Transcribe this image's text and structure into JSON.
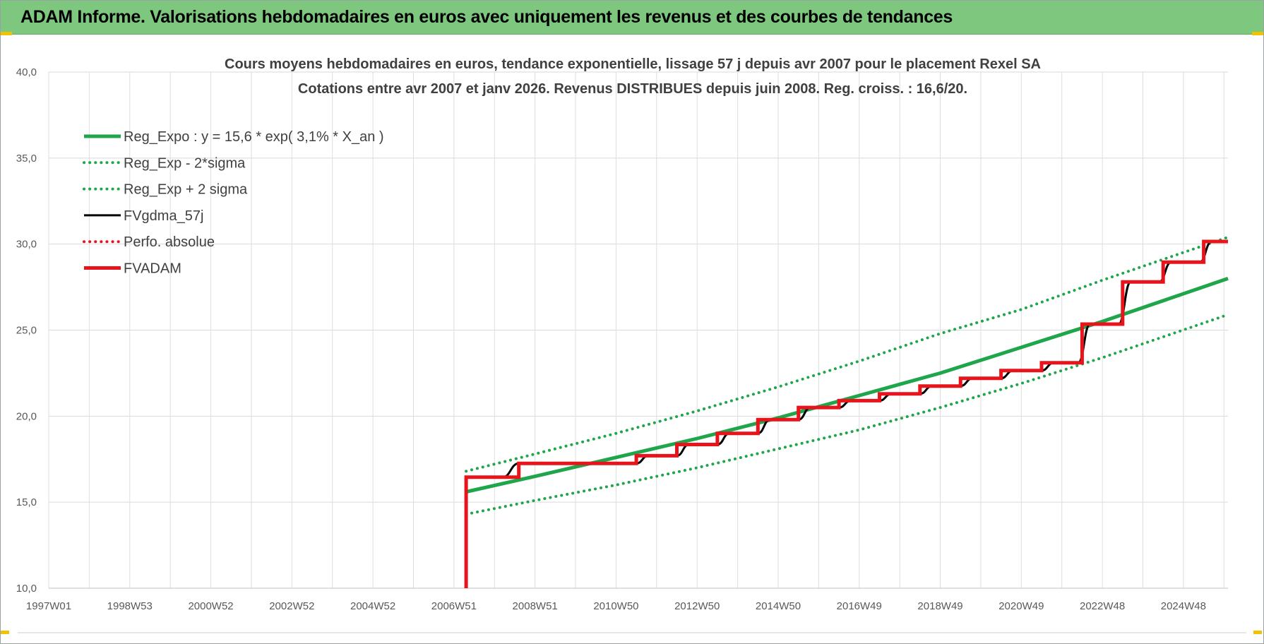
{
  "banner": {
    "title": "ADAM Informe. Valorisations hebdomadaires en euros avec uniquement les revenus et des courbes de tendances",
    "background_color": "#7dc87e"
  },
  "chart_data": {
    "type": "line",
    "title": "Cours moyens hebdomadaires en euros, tendance exponentielle, lissage 57 j depuis avr 2007 pour le placement Rexel SA",
    "subtitle": "Cotations entre avr 2007 et janv 2026. Revenus DISTRIBUES depuis juin 2008. Reg. croiss. : 16,6/20.",
    "xlabel": "",
    "ylabel": "",
    "x_ticks": [
      "1997W01",
      "1998W53",
      "2000W52",
      "2002W52",
      "2004W52",
      "2006W51",
      "2008W51",
      "2010W50",
      "2012W50",
      "2014W50",
      "2016W49",
      "2018W49",
      "2020W49",
      "2022W48",
      "2024W48"
    ],
    "x_range": [
      1997.0,
      2026.1
    ],
    "ylim": [
      10,
      40
    ],
    "y_ticks": [
      "10,0",
      "15,0",
      "20,0",
      "25,0",
      "30,0",
      "35,0",
      "40,0"
    ],
    "grid": true,
    "legend_position": "top-left",
    "colors": {
      "green": "#1fa54a",
      "black": "#000000",
      "red": "#e8141c"
    },
    "series": [
      {
        "name": "Reg_Expo : y = 15,6 * exp( 3,1% *  X_an )",
        "style": "solid",
        "color": "#1fa54a",
        "x": [
          2007.3,
          2009,
          2011,
          2013,
          2015,
          2017,
          2019,
          2021,
          2023,
          2026.1
        ],
        "values": [
          15.6,
          16.5,
          17.6,
          18.7,
          19.9,
          21.2,
          22.5,
          24.0,
          25.5,
          28.0
        ]
      },
      {
        "name": "Reg_Exp - 2*sigma",
        "style": "dotted",
        "color": "#1fa54a",
        "x": [
          2007.3,
          2009,
          2011,
          2013,
          2015,
          2017,
          2019,
          2021,
          2023,
          2026.1
        ],
        "values": [
          14.3,
          15.1,
          16.0,
          17.0,
          18.1,
          19.2,
          20.5,
          21.9,
          23.4,
          25.9
        ]
      },
      {
        "name": "Reg_Exp + 2 sigma",
        "style": "dotted",
        "color": "#1fa54a",
        "x": [
          2007.3,
          2009,
          2011,
          2013,
          2015,
          2017,
          2019,
          2021,
          2023,
          2026.1
        ],
        "values": [
          16.8,
          17.8,
          19.0,
          20.3,
          21.7,
          23.2,
          24.8,
          26.2,
          27.9,
          30.4
        ]
      },
      {
        "name": "FVgdma_57j",
        "style": "solid",
        "color": "#000000",
        "x": [
          2007.3,
          2008.2,
          2008.6,
          2011.5,
          2011.8,
          2012.5,
          2012.8,
          2013.5,
          2013.8,
          2014.5,
          2014.8,
          2015.5,
          2015.8,
          2016.5,
          2016.8,
          2017.5,
          2017.8,
          2018.5,
          2018.8,
          2019.5,
          2019.8,
          2020.5,
          2020.8,
          2021.5,
          2021.8,
          2022.4,
          2022.7,
          2023.4,
          2023.7,
          2024.4,
          2024.7,
          2025.4,
          2025.7,
          2026.1
        ],
        "values": [
          16.45,
          16.45,
          17.25,
          17.25,
          17.7,
          17.7,
          18.35,
          18.35,
          19.0,
          19.0,
          19.8,
          19.8,
          20.5,
          20.5,
          20.9,
          20.9,
          21.3,
          21.3,
          21.75,
          21.75,
          22.2,
          22.2,
          22.65,
          22.65,
          23.1,
          23.1,
          25.35,
          25.35,
          27.8,
          27.8,
          28.95,
          28.95,
          30.15,
          30.15
        ]
      },
      {
        "name": "Perfo. absolue",
        "style": "dotted",
        "color": "#e8141c",
        "x": [],
        "values": []
      },
      {
        "name": "FVADAM",
        "style": "solid",
        "color": "#e8141c",
        "x": [
          2007.3,
          2007.3,
          2008.6,
          2008.6,
          2011.5,
          2011.5,
          2012.5,
          2012.5,
          2013.5,
          2013.5,
          2014.5,
          2014.5,
          2015.5,
          2015.5,
          2016.5,
          2016.5,
          2017.5,
          2017.5,
          2018.5,
          2018.5,
          2019.5,
          2019.5,
          2020.5,
          2020.5,
          2021.5,
          2021.5,
          2022.5,
          2022.5,
          2023.5,
          2023.5,
          2024.5,
          2024.5,
          2025.5,
          2025.5,
          2026.1
        ],
        "values": [
          10.0,
          16.45,
          16.45,
          17.25,
          17.25,
          17.7,
          17.7,
          18.35,
          18.35,
          19.0,
          19.0,
          19.8,
          19.8,
          20.5,
          20.5,
          20.9,
          20.9,
          21.3,
          21.3,
          21.75,
          21.75,
          22.2,
          22.2,
          22.65,
          22.65,
          23.1,
          23.1,
          25.35,
          25.35,
          27.8,
          27.8,
          28.95,
          28.95,
          30.15,
          30.15
        ]
      }
    ]
  }
}
